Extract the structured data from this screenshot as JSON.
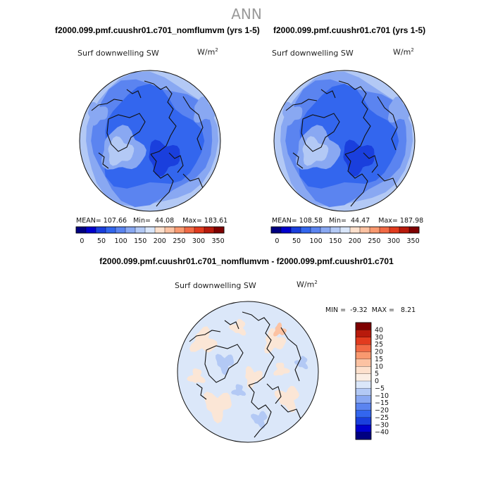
{
  "figure": {
    "title": "ANN"
  },
  "panels": [
    {
      "title": "f2000.099.pmf.cuushr01.c701_nomflumvm (yrs 1-5)",
      "variable": "Surf downwelling SW",
      "units_base": "W/m",
      "units_exp": "2",
      "stats": {
        "mean_label": "MEAN=",
        "mean": "107.66",
        "min_label": "Min=",
        "min": "44.08",
        "max_label": "Max=",
        "max": "183.61"
      }
    },
    {
      "title": "f2000.099.pmf.cuushr01.c701 (yrs 1-5)",
      "variable": "Surf downwelling SW",
      "units_base": "W/m",
      "units_exp": "2",
      "stats": {
        "mean_label": "MEAN=",
        "mean": "108.58",
        "min_label": "Min=",
        "min": "44.47",
        "max_label": "Max=",
        "max": "187.98"
      }
    },
    {
      "title": "f2000.099.pmf.cuushr01.c701_nomflumvm - f2000.099.pmf.cuushr01.c701",
      "variable": "Surf downwelling SW",
      "units_base": "W/m",
      "units_exp": "2",
      "stats": {
        "min_label": "MIN =",
        "min": "-9.32",
        "max_label": "MAX =",
        "max": "8.21"
      }
    }
  ],
  "chart_data": [
    {
      "type": "heatmap",
      "projection": "polar-stereographic-north",
      "title": "f2000.099.pmf.cuushr01.c701_nomflumvm (yrs 1-5)",
      "variable": "Surf downwelling SW",
      "units": "W/m^2",
      "mean": 107.66,
      "min": 44.08,
      "max": 183.61,
      "colorbar": {
        "levels": [
          0,
          25,
          50,
          75,
          100,
          125,
          150,
          175,
          200,
          225,
          250,
          275,
          300,
          325,
          350
        ],
        "tick_labels": [
          "0",
          "50",
          "100",
          "150",
          "200",
          "250",
          "300",
          "350"
        ],
        "colors": [
          "#000080",
          "#0000cd",
          "#1a3fdd",
          "#3366ee",
          "#5b84f0",
          "#89a8f2",
          "#b3c9f5",
          "#d9e6fa",
          "#fde0cc",
          "#fcc2a2",
          "#f9996f",
          "#f26a45",
          "#e23b1e",
          "#b81a0c",
          "#7e0000"
        ]
      }
    },
    {
      "type": "heatmap",
      "projection": "polar-stereographic-north",
      "title": "f2000.099.pmf.cuushr01.c701 (yrs 1-5)",
      "variable": "Surf downwelling SW",
      "units": "W/m^2",
      "mean": 108.58,
      "min": 44.47,
      "max": 187.98,
      "colorbar": {
        "levels": [
          0,
          25,
          50,
          75,
          100,
          125,
          150,
          175,
          200,
          225,
          250,
          275,
          300,
          325,
          350
        ],
        "tick_labels": [
          "0",
          "50",
          "100",
          "150",
          "200",
          "250",
          "300",
          "350"
        ],
        "colors": [
          "#000080",
          "#0000cd",
          "#1a3fdd",
          "#3366ee",
          "#5b84f0",
          "#89a8f2",
          "#b3c9f5",
          "#d9e6fa",
          "#fde0cc",
          "#fcc2a2",
          "#f9996f",
          "#f26a45",
          "#e23b1e",
          "#b81a0c",
          "#7e0000"
        ]
      }
    },
    {
      "type": "heatmap",
      "projection": "polar-stereographic-north",
      "title": "f2000.099.pmf.cuushr01.c701_nomflumvm - f2000.099.pmf.cuushr01.c701",
      "variable": "Surf downwelling SW",
      "units": "W/m^2",
      "min": -9.32,
      "max": 8.21,
      "colorbar": {
        "levels": [
          40,
          30,
          25,
          20,
          15,
          10,
          5,
          0,
          -5,
          -10,
          -15,
          -20,
          -25,
          -30,
          -40
        ],
        "tick_labels": [
          "40",
          "30",
          "25",
          "20",
          "15",
          "10",
          "5",
          "0",
          "−5",
          "−10",
          "−15",
          "−20",
          "−25",
          "−30",
          "−40"
        ],
        "colors": [
          "#7e0000",
          "#b81a0c",
          "#e23b1e",
          "#f26a45",
          "#f9996f",
          "#fcc2a2",
          "#fde0cc",
          "#fbeee4",
          "#dbe7f9",
          "#b3c9f5",
          "#89a8f2",
          "#5b84f0",
          "#3366ee",
          "#1a3fdd",
          "#0000cd",
          "#000080"
        ]
      }
    }
  ]
}
